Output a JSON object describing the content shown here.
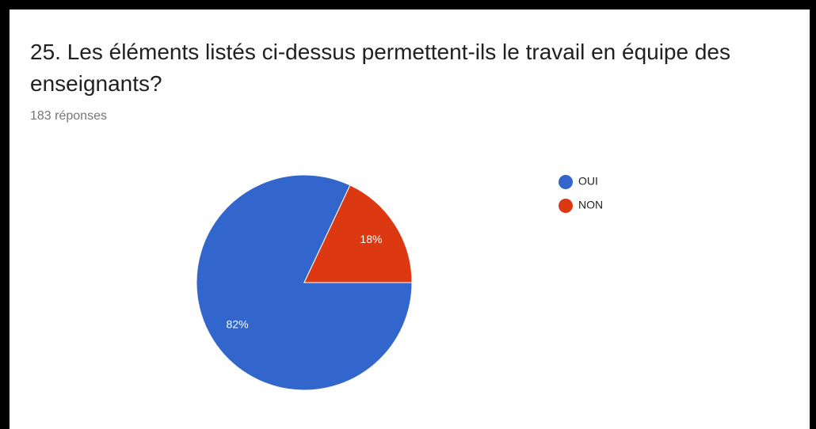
{
  "chart_data": {
    "type": "pie",
    "title": "25. Les éléments listés ci-dessus permettent-ils le travail en équipe des enseignants?",
    "subtitle": "183 réponses",
    "categories": [
      "OUI",
      "NON"
    ],
    "values": [
      82,
      18
    ],
    "value_labels": [
      "82%",
      "18%"
    ],
    "colors": [
      "#3366cc",
      "#dc3912"
    ]
  }
}
